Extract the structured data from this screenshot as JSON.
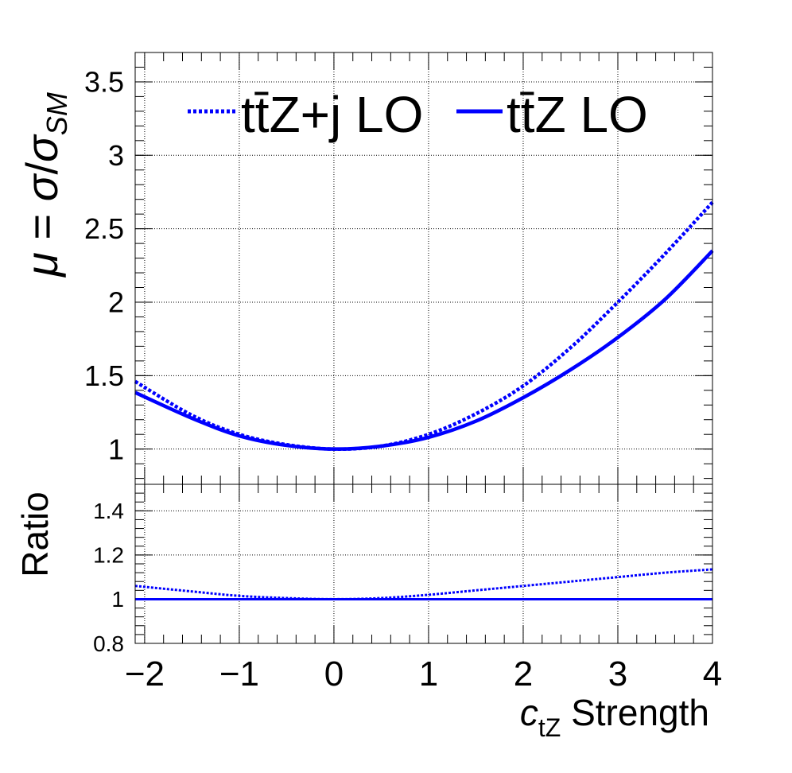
{
  "chart_data": [
    {
      "type": "line",
      "panel": "main",
      "ylabel": "μ = σ/σ_SM",
      "xlim": [
        -2.1,
        4.0
      ],
      "ylim": [
        0.76,
        3.7
      ],
      "grid": true,
      "yticks": [
        1,
        1.5,
        2,
        2.5,
        3,
        3.5
      ],
      "ytick_labels": [
        "1",
        "1.5",
        "2",
        "2.5",
        "3",
        "3.5"
      ],
      "legend_position": "top",
      "series": [
        {
          "name": "tt̄Z+j LO",
          "style": "dotted",
          "color": "#0000ff",
          "x": [
            -2.1,
            -1.5,
            -1.0,
            -0.5,
            0.0,
            0.5,
            1.0,
            1.5,
            2.0,
            2.5,
            3.0,
            3.5,
            4.0
          ],
          "y": [
            1.46,
            1.23,
            1.1,
            1.03,
            1.0,
            1.02,
            1.1,
            1.24,
            1.43,
            1.69,
            2.0,
            2.33,
            2.68
          ]
        },
        {
          "name": "tt̄Z LO",
          "style": "solid",
          "color": "#0000ff",
          "x": [
            -2.1,
            -1.5,
            -1.0,
            -0.5,
            0.0,
            0.5,
            1.0,
            1.5,
            2.0,
            2.5,
            3.0,
            3.5,
            4.0
          ],
          "y": [
            1.385,
            1.21,
            1.09,
            1.025,
            1.0,
            1.02,
            1.08,
            1.19,
            1.35,
            1.54,
            1.76,
            2.02,
            2.35
          ]
        }
      ]
    },
    {
      "type": "line",
      "panel": "ratio",
      "ylabel": "Ratio",
      "xlabel_main": "c",
      "xlabel_sub": "tZ",
      "xlabel_rest": " Strength",
      "xlim": [
        -2.1,
        4.0
      ],
      "ylim": [
        0.8,
        1.52
      ],
      "grid": true,
      "xticks": [
        -2,
        -1,
        0,
        1,
        2,
        3,
        4
      ],
      "xtick_labels": [
        "−2",
        "−1",
        "0",
        "1",
        "2",
        "3",
        "4"
      ],
      "yticks": [
        0.8,
        1,
        1.2,
        1.4
      ],
      "ytick_labels": [
        "0.8",
        "1",
        "1.2",
        "1.4"
      ],
      "series": [
        {
          "name": "tt̄Z+j LO",
          "style": "dotted",
          "color": "#0000ff",
          "x": [
            -2.1,
            -1.5,
            -1.0,
            -0.5,
            0.0,
            0.5,
            1.0,
            1.5,
            2.0,
            2.5,
            3.0,
            3.5,
            4.0
          ],
          "y": [
            1.06,
            1.035,
            1.015,
            1.005,
            1.0,
            1.005,
            1.02,
            1.04,
            1.06,
            1.08,
            1.1,
            1.12,
            1.135
          ]
        },
        {
          "name": "tt̄Z LO",
          "style": "solid",
          "color": "#0000ff",
          "x": [
            -2.1,
            4.0
          ],
          "y": [
            1.0,
            1.0
          ]
        }
      ]
    }
  ]
}
